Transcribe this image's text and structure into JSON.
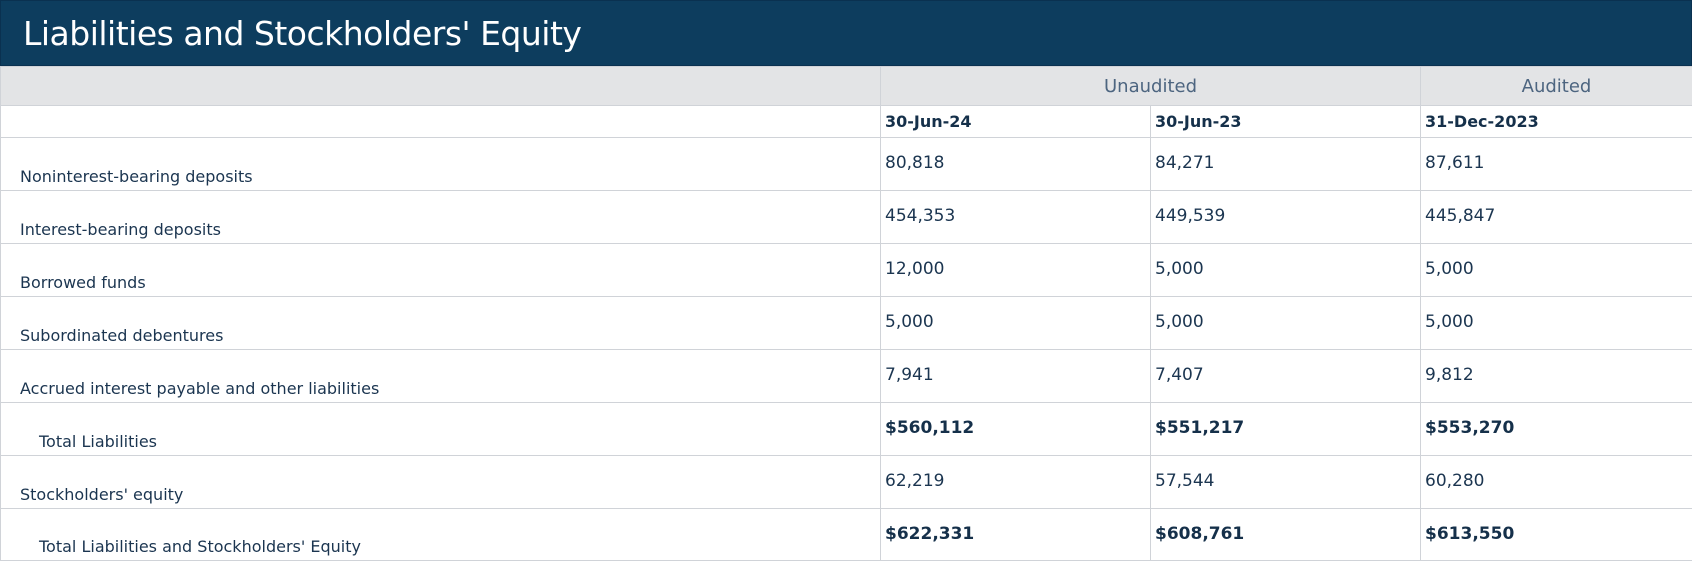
{
  "title": "Liabilities and Stockholders' Equity",
  "groups": {
    "unaudited": "Unaudited",
    "audited": "Audited"
  },
  "dates": [
    "30-Jun-24",
    "30-Jun-23",
    "31-Dec-2023"
  ],
  "rows": [
    {
      "label": "Noninterest-bearing deposits",
      "values": [
        "80,818",
        "84,271",
        "87,611"
      ]
    },
    {
      "label": "Interest-bearing deposits",
      "values": [
        "454,353",
        "449,539",
        "445,847"
      ]
    },
    {
      "label": "Borrowed funds",
      "values": [
        "12,000",
        "5,000",
        "5,000"
      ]
    },
    {
      "label": "Subordinated debentures",
      "values": [
        "5,000",
        "5,000",
        "5,000"
      ]
    },
    {
      "label": "Accrued interest payable and other liabilities",
      "values": [
        "7,941",
        "7,407",
        "9,812"
      ]
    },
    {
      "label": "Total Liabilities",
      "values": [
        "$560,112",
        "$551,217",
        "$553,270"
      ]
    },
    {
      "label": "Stockholders' equity",
      "values": [
        "62,219",
        "57,544",
        "60,280"
      ]
    },
    {
      "label": "Total Liabilities and Stockholders' Equity",
      "values": [
        "$622,331",
        "$608,761",
        "$613,550"
      ]
    }
  ]
}
